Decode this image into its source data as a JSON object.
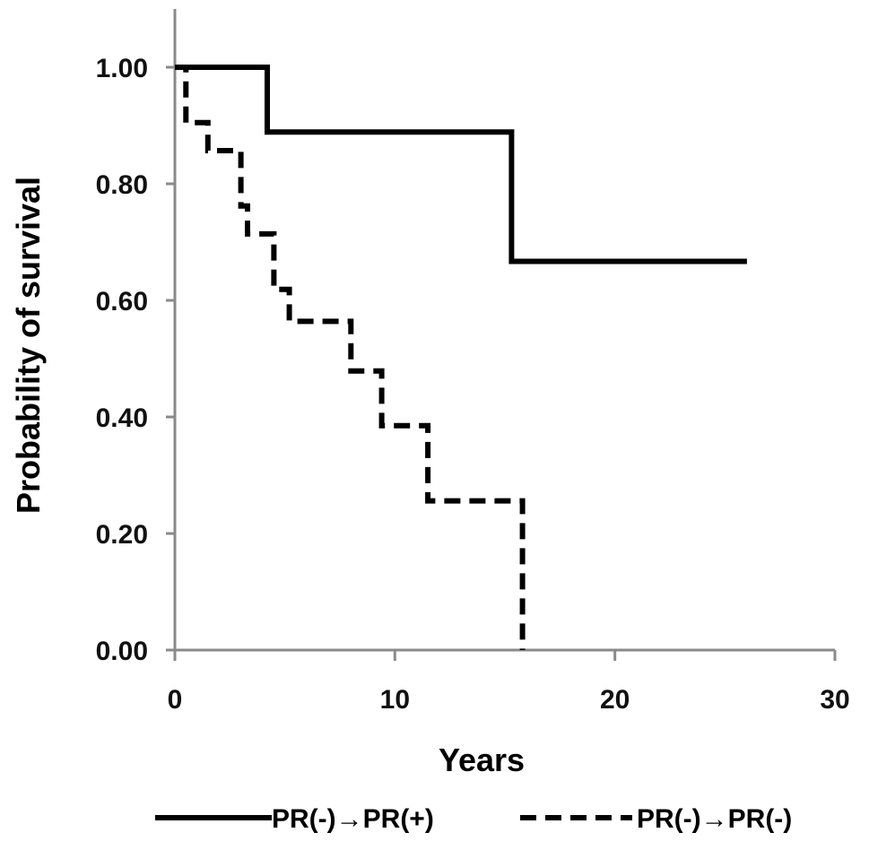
{
  "chart_data": {
    "type": "line",
    "step": true,
    "title": "",
    "xlabel": "Years",
    "ylabel": "Probability of survival",
    "xlim": [
      0,
      30
    ],
    "ylim": [
      0,
      1.1
    ],
    "x_ticks": [
      0,
      10,
      20,
      30
    ],
    "x_tick_labels": [
      "0",
      "10",
      "20",
      "30"
    ],
    "y_ticks": [
      0,
      0.2,
      0.4,
      0.6,
      0.8,
      1.0
    ],
    "y_tick_labels": [
      "0.00",
      "0.20",
      "0.40",
      "0.60",
      "0.80",
      "1.00"
    ],
    "grid": false,
    "legend_position": "bottom",
    "series": [
      {
        "name": "PR(-)→PR(+)",
        "style": "solid",
        "color": "#000000",
        "x": [
          0,
          4.2,
          4.2,
          15.3,
          15.3,
          26
        ],
        "y": [
          1.0,
          1.0,
          0.889,
          0.889,
          0.667,
          0.667
        ]
      },
      {
        "name": "PR(-)→PR(-)",
        "style": "dashed",
        "color": "#000000",
        "x": [
          0,
          0.5,
          0.5,
          1.5,
          1.5,
          3.0,
          3.0,
          3.3,
          3.3,
          4.5,
          4.5,
          5.2,
          5.2,
          8.0,
          8.0,
          9.4,
          9.4,
          11.5,
          11.5,
          15.8,
          15.8
        ],
        "y": [
          1.0,
          1.0,
          0.905,
          0.905,
          0.857,
          0.857,
          0.762,
          0.762,
          0.714,
          0.714,
          0.619,
          0.619,
          0.564,
          0.564,
          0.479,
          0.479,
          0.385,
          0.385,
          0.256,
          0.256,
          0.0
        ]
      }
    ]
  }
}
